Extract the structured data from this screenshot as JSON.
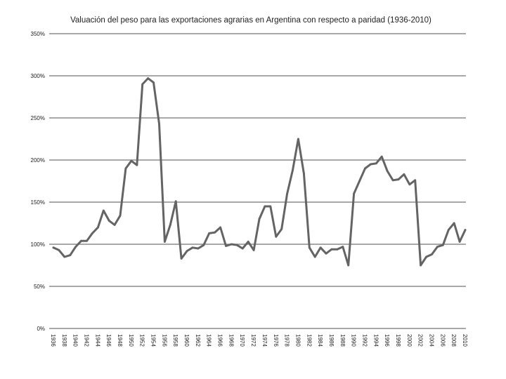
{
  "chart_data": {
    "type": "line",
    "title": "Valuación del peso para las exportaciones agrarias en Argentina con respecto a paridad (1936-2010)",
    "xlabel": "",
    "ylabel": "",
    "ylim": [
      0,
      350
    ],
    "y_ticks": [
      0,
      50,
      100,
      150,
      200,
      250,
      300,
      350
    ],
    "y_tick_labels": [
      "0%",
      "50%",
      "100%",
      "150%",
      "200%",
      "250%",
      "300%",
      "350%"
    ],
    "x_tick_labels": [
      "1936",
      "1938",
      "1940",
      "1942",
      "1944",
      "1946",
      "1948",
      "1950",
      "1952",
      "1954",
      "1956",
      "1958",
      "1960",
      "1962",
      "1964",
      "1966",
      "1968",
      "1970",
      "1972",
      "1974",
      "1976",
      "1978",
      "1980",
      "1982",
      "1984",
      "1986",
      "1988",
      "1990",
      "1992",
      "1994",
      "1996",
      "1998",
      "2000",
      "2002",
      "2004",
      "2006",
      "2008",
      "2010"
    ],
    "grid": true,
    "legend": "none",
    "line_color": "#646464",
    "grid_color": "#8c8c8c",
    "series": [
      {
        "x": [
          1936,
          1937,
          1938,
          1939,
          1940,
          1941,
          1942,
          1943,
          1944,
          1945,
          1946,
          1947,
          1948,
          1949,
          1950,
          1951,
          1952,
          1953,
          1954,
          1955,
          1956,
          1957,
          1958,
          1959,
          1960,
          1961,
          1962,
          1963,
          1964,
          1965,
          1966,
          1967,
          1968,
          1969,
          1970,
          1971,
          1972,
          1973,
          1974,
          1975,
          1976,
          1977,
          1978,
          1979,
          1980,
          1981,
          1982,
          1983,
          1984,
          1985,
          1986,
          1987,
          1988,
          1989,
          1990,
          1991,
          1992,
          1993,
          1994,
          1995,
          1996,
          1997,
          1998,
          1999,
          2000,
          2001,
          2002,
          2003,
          2004,
          2005,
          2006,
          2007,
          2008,
          2009,
          2010
        ],
        "values": [
          96,
          93,
          85,
          87,
          97,
          104,
          104,
          113,
          120,
          140,
          128,
          123,
          134,
          190,
          199,
          194,
          290,
          297,
          292,
          243,
          103,
          123,
          151,
          83,
          92,
          96,
          95,
          99,
          113,
          114,
          120,
          98,
          100,
          99,
          95,
          103,
          93,
          130,
          145,
          145,
          109,
          118,
          160,
          188,
          225,
          184,
          96,
          85,
          96,
          89,
          94,
          94,
          97,
          75,
          160,
          175,
          190,
          195,
          196,
          204,
          187,
          176,
          177,
          183,
          171,
          176,
          75,
          85,
          88,
          97,
          99,
          117,
          125,
          103,
          117
        ]
      }
    ]
  }
}
